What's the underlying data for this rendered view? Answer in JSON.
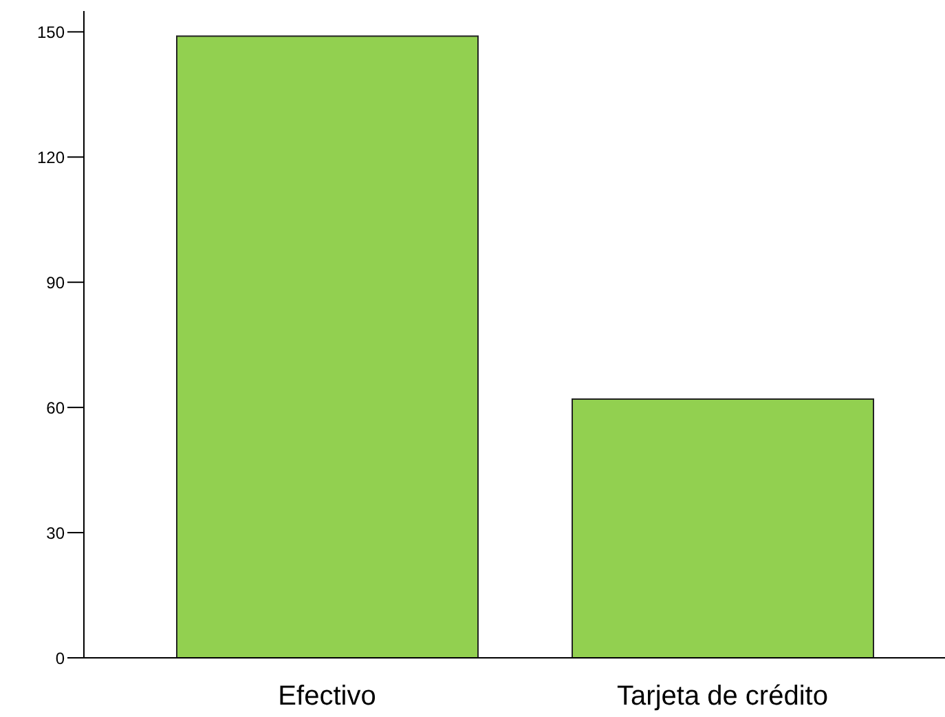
{
  "chart_data": {
    "type": "bar",
    "categories": [
      "Efectivo",
      "Tarjeta de crédito"
    ],
    "values": [
      149,
      62
    ],
    "color": "#92d050",
    "ylim": [
      0,
      155
    ],
    "yticks": [
      0,
      30,
      60,
      90,
      120,
      150
    ],
    "grid": false,
    "legend": false
  }
}
